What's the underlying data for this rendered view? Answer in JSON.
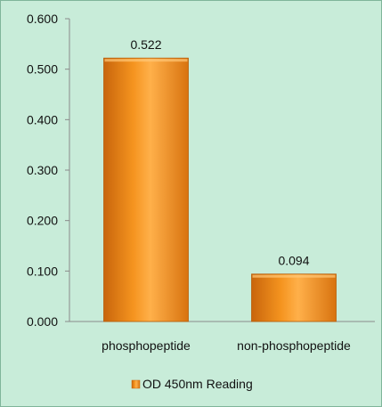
{
  "chart_data": {
    "type": "bar",
    "categories": [
      "phosphopeptide",
      "non-phosphopeptide"
    ],
    "series": [
      {
        "name": "OD 450nm Reading",
        "values": [
          0.522,
          0.094
        ]
      }
    ],
    "data_labels": [
      "0.522",
      "0.094"
    ],
    "yticks": [
      "0.000",
      "0.100",
      "0.200",
      "0.300",
      "0.400",
      "0.500",
      "0.600"
    ],
    "ylim": [
      0,
      0.6
    ],
    "grid": false,
    "legend_position": "bottom",
    "colors": {
      "bar": "#f5941f",
      "bar_dark": "#c8650c",
      "bar_light": "#ffbb5c",
      "background": "#c8ecd9",
      "axis": "#8a8a8a"
    }
  }
}
